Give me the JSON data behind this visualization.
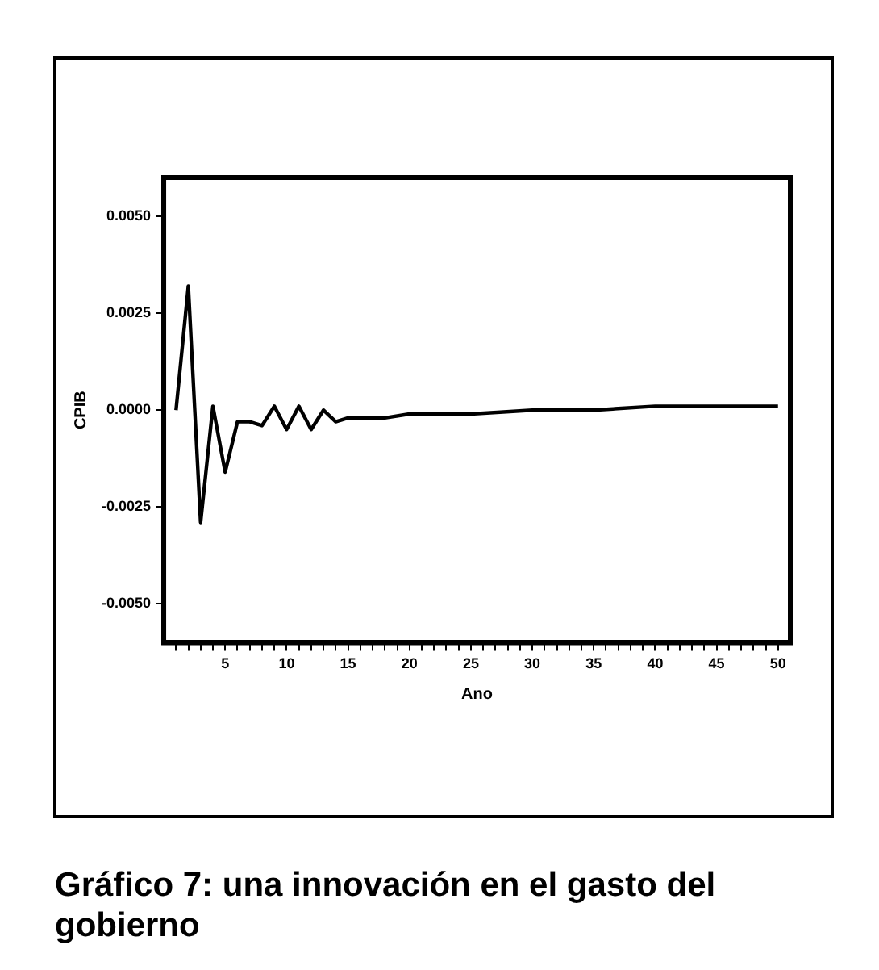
{
  "chart_data": {
    "type": "line",
    "title": "Gráfico 7: una innovación en el gasto del gobierno",
    "xlabel": "Ano",
    "ylabel": "CPIB",
    "x": [
      1,
      2,
      3,
      4,
      5,
      6,
      7,
      8,
      9,
      10,
      11,
      12,
      13,
      14,
      15,
      16,
      18,
      20,
      22,
      25,
      30,
      35,
      40,
      45,
      50
    ],
    "series": [
      {
        "color": "#000000",
        "values": [
          0,
          0.0032,
          -0.0029,
          0.0001,
          -0.0016,
          -0.0003,
          -0.0003,
          -0.0004,
          0.0001,
          -0.0005,
          0.0001,
          -0.0005,
          0.0,
          -0.0003,
          -0.0002,
          -0.0002,
          -0.0002,
          -0.0001,
          -0.0001,
          -0.0001,
          0,
          0,
          0.0001,
          0.0001,
          0.0001
        ]
      }
    ],
    "xlim": [
      0,
      51
    ],
    "xticks": [
      {
        "value": 1,
        "label": null
      },
      {
        "value": 2,
        "label": null
      },
      {
        "value": 3,
        "label": null
      },
      {
        "value": 4,
        "label": null
      },
      5,
      {
        "value": 6,
        "label": null
      },
      {
        "value": 7,
        "label": null
      },
      {
        "value": 8,
        "label": null
      },
      {
        "value": 9,
        "label": null
      },
      10,
      {
        "value": 11,
        "label": null
      },
      {
        "value": 12,
        "label": null
      },
      {
        "value": 13,
        "label": null
      },
      {
        "value": 14,
        "label": null
      },
      15,
      {
        "value": 16,
        "label": null
      },
      {
        "value": 17,
        "label": null
      },
      {
        "value": 18,
        "label": null
      },
      {
        "value": 19,
        "label": null
      },
      20,
      {
        "value": 21,
        "label": null
      },
      {
        "value": 22,
        "label": null
      },
      {
        "value": 23,
        "label": null
      },
      {
        "value": 24,
        "label": null
      },
      25,
      {
        "value": 26,
        "label": null
      },
      {
        "value": 27,
        "label": null
      },
      {
        "value": 28,
        "label": null
      },
      {
        "value": 29,
        "label": null
      },
      30,
      {
        "value": 31,
        "label": null
      },
      {
        "value": 32,
        "label": null
      },
      {
        "value": 33,
        "label": null
      },
      {
        "value": 34,
        "label": null
      },
      35,
      {
        "value": 36,
        "label": null
      },
      {
        "value": 37,
        "label": null
      },
      {
        "value": 38,
        "label": null
      },
      {
        "value": 39,
        "label": null
      },
      40,
      {
        "value": 41,
        "label": null
      },
      {
        "value": 42,
        "label": null
      },
      {
        "value": 43,
        "label": null
      },
      {
        "value": 44,
        "label": null
      },
      45,
      {
        "value": 46,
        "label": null
      },
      {
        "value": 47,
        "label": null
      },
      {
        "value": 48,
        "label": null
      },
      {
        "value": 49,
        "label": null
      },
      50
    ],
    "ylim": [
      -0.006,
      0.006
    ],
    "yticks": [
      {
        "value": -0.005,
        "label": "-0.0050"
      },
      {
        "value": -0.0025,
        "label": "-0.0025"
      },
      {
        "value": 0,
        "label": "0.0000"
      },
      {
        "value": 0.0025,
        "label": "0.0025"
      },
      {
        "value": 0.005,
        "label": "0.0050"
      }
    ],
    "grid": false,
    "legend": false,
    "marker": "none",
    "line_style": "solid"
  }
}
